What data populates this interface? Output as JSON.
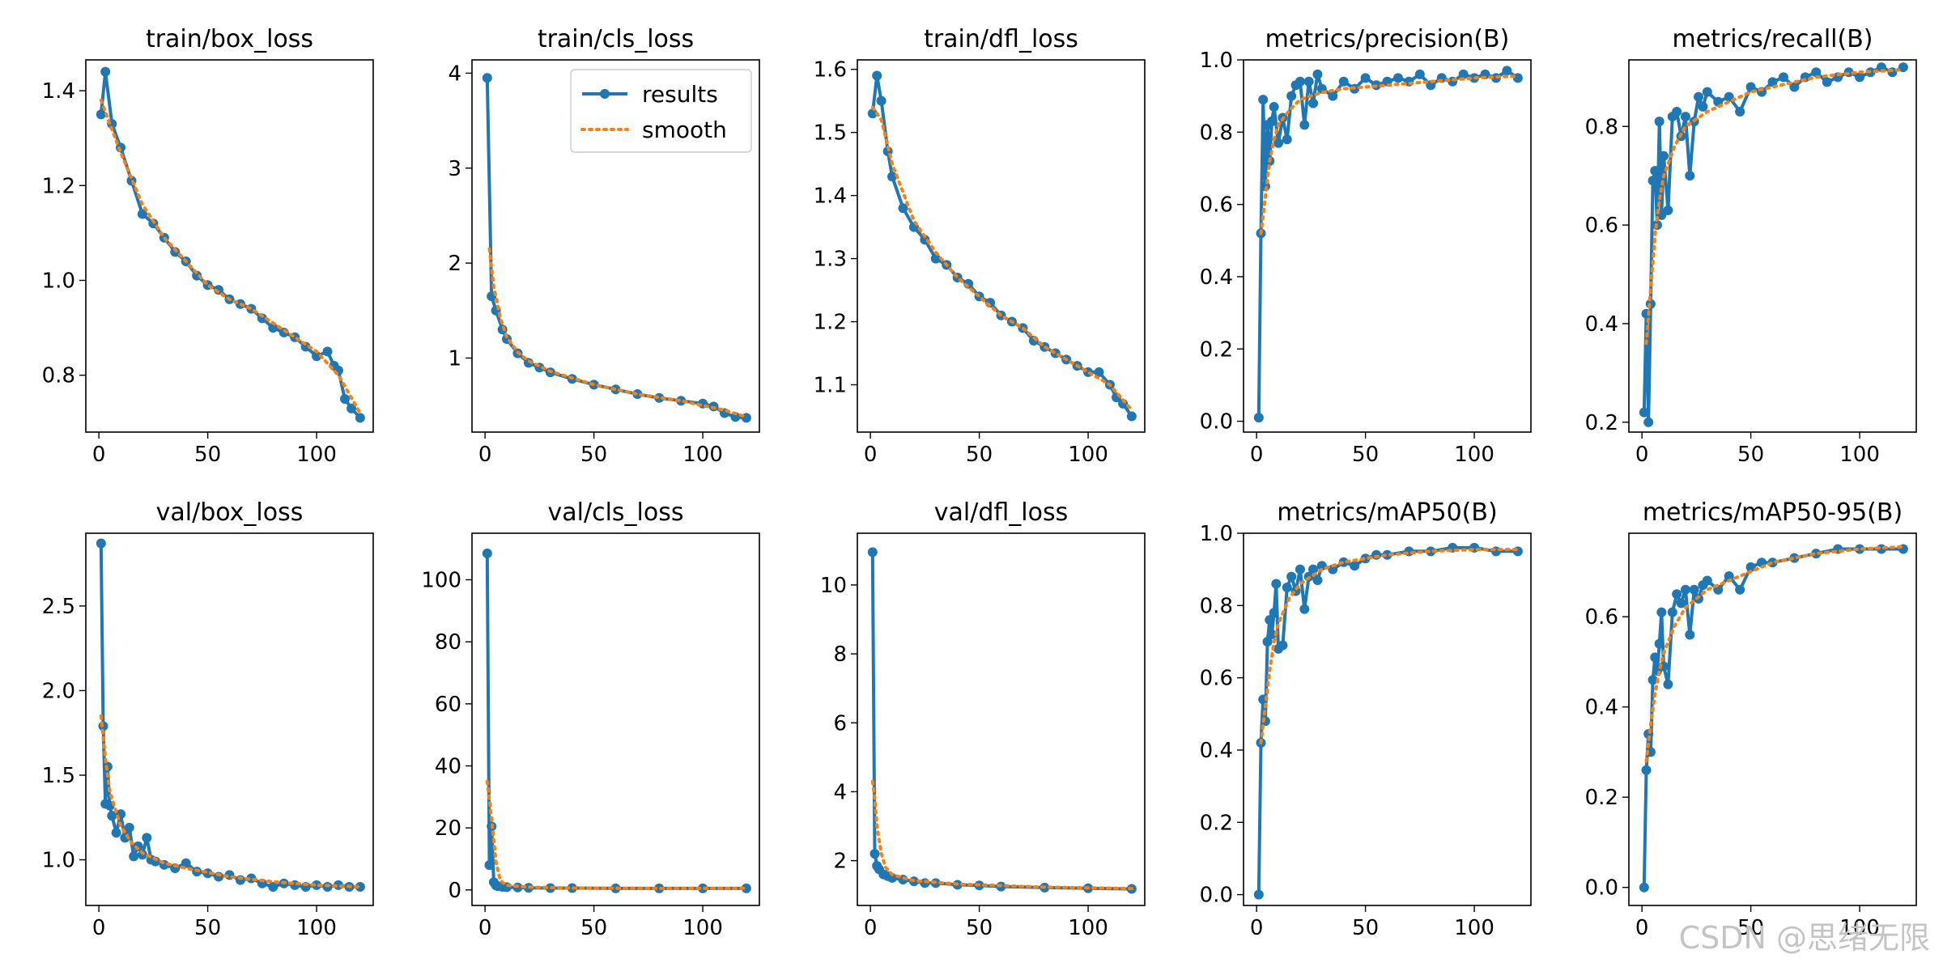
{
  "watermark": "CSDN @思绪无限",
  "colors": {
    "results": "#1f77b4",
    "smooth": "#ff7f0e"
  },
  "chart_data": [
    {
      "type": "line",
      "title": "train/box_loss",
      "xlim": [
        -6,
        126
      ],
      "ylim": [
        0.68,
        1.465
      ],
      "xticks": [
        "0",
        "50",
        "100"
      ],
      "yticks": [
        "0.8",
        "1.0",
        "1.2",
        "1.4"
      ],
      "series": [
        {
          "name": "results",
          "x": [
            1,
            3,
            6,
            10,
            15,
            20,
            25,
            30,
            35,
            40,
            45,
            50,
            55,
            60,
            65,
            70,
            75,
            80,
            85,
            90,
            95,
            100,
            105,
            108,
            110,
            113,
            116,
            120
          ],
          "values": [
            1.35,
            1.44,
            1.33,
            1.28,
            1.21,
            1.14,
            1.12,
            1.09,
            1.06,
            1.04,
            1.01,
            0.99,
            0.98,
            0.96,
            0.95,
            0.94,
            0.92,
            0.9,
            0.89,
            0.88,
            0.86,
            0.84,
            0.85,
            0.82,
            0.81,
            0.75,
            0.73,
            0.71
          ]
        },
        {
          "name": "smooth",
          "x": [
            1,
            5,
            10,
            20,
            30,
            40,
            50,
            60,
            70,
            80,
            90,
            100,
            110,
            120
          ],
          "values": [
            1.38,
            1.33,
            1.27,
            1.16,
            1.09,
            1.04,
            0.99,
            0.96,
            0.94,
            0.91,
            0.88,
            0.85,
            0.8,
            0.72
          ]
        }
      ]
    },
    {
      "type": "line",
      "title": "train/cls_loss",
      "xlim": [
        -6,
        126
      ],
      "ylim": [
        0.22,
        4.14
      ],
      "xticks": [
        "0",
        "50",
        "100"
      ],
      "yticks": [
        "1",
        "2",
        "3",
        "4"
      ],
      "legend": {
        "position": "top-right",
        "entries": [
          "results",
          "smooth"
        ]
      },
      "series": [
        {
          "name": "results",
          "x": [
            1,
            3,
            5,
            8,
            10,
            15,
            20,
            25,
            30,
            40,
            50,
            60,
            70,
            80,
            90,
            100,
            105,
            110,
            115,
            120
          ],
          "values": [
            3.95,
            1.65,
            1.5,
            1.3,
            1.2,
            1.05,
            0.95,
            0.9,
            0.85,
            0.78,
            0.72,
            0.67,
            0.62,
            0.58,
            0.55,
            0.52,
            0.49,
            0.42,
            0.38,
            0.37
          ]
        },
        {
          "name": "smooth",
          "x": [
            2,
            4,
            7,
            10,
            15,
            20,
            30,
            50,
            70,
            90,
            110,
            120
          ],
          "values": [
            2.15,
            1.75,
            1.42,
            1.22,
            1.06,
            0.97,
            0.86,
            0.72,
            0.62,
            0.55,
            0.45,
            0.38
          ]
        }
      ]
    },
    {
      "type": "line",
      "title": "train/dfl_loss",
      "xlim": [
        -6,
        126
      ],
      "ylim": [
        1.025,
        1.615
      ],
      "xticks": [
        "0",
        "50",
        "100"
      ],
      "yticks": [
        "1.1",
        "1.2",
        "1.3",
        "1.4",
        "1.5",
        "1.6"
      ],
      "series": [
        {
          "name": "results",
          "x": [
            1,
            3,
            5,
            8,
            10,
            15,
            20,
            25,
            30,
            35,
            40,
            45,
            50,
            55,
            60,
            65,
            70,
            75,
            80,
            85,
            90,
            95,
            100,
            105,
            110,
            113,
            116,
            120
          ],
          "values": [
            1.53,
            1.59,
            1.55,
            1.47,
            1.43,
            1.38,
            1.35,
            1.33,
            1.3,
            1.29,
            1.27,
            1.26,
            1.24,
            1.23,
            1.21,
            1.2,
            1.19,
            1.17,
            1.16,
            1.15,
            1.14,
            1.13,
            1.12,
            1.12,
            1.1,
            1.08,
            1.07,
            1.05
          ]
        },
        {
          "name": "smooth",
          "x": [
            1,
            5,
            10,
            20,
            30,
            40,
            50,
            60,
            70,
            80,
            90,
            100,
            110,
            120
          ],
          "values": [
            1.54,
            1.52,
            1.45,
            1.36,
            1.31,
            1.27,
            1.24,
            1.21,
            1.19,
            1.16,
            1.14,
            1.12,
            1.1,
            1.06
          ]
        }
      ]
    },
    {
      "type": "line",
      "title": "metrics/precision(B)",
      "xlim": [
        -6,
        126
      ],
      "ylim": [
        -0.03,
        1.0
      ],
      "xticks": [
        "0",
        "50",
        "100"
      ],
      "yticks": [
        "0.0",
        "0.2",
        "0.4",
        "0.6",
        "0.8",
        "1.0"
      ],
      "series": [
        {
          "name": "results",
          "x": [
            1,
            2,
            3,
            4,
            5,
            6,
            7,
            8,
            10,
            12,
            14,
            16,
            18,
            20,
            22,
            24,
            26,
            28,
            30,
            35,
            40,
            45,
            50,
            55,
            60,
            65,
            70,
            75,
            80,
            85,
            90,
            95,
            100,
            105,
            110,
            115,
            120
          ],
          "values": [
            0.01,
            0.52,
            0.89,
            0.65,
            0.82,
            0.72,
            0.83,
            0.87,
            0.77,
            0.84,
            0.78,
            0.9,
            0.93,
            0.94,
            0.82,
            0.94,
            0.88,
            0.96,
            0.92,
            0.9,
            0.94,
            0.92,
            0.95,
            0.93,
            0.94,
            0.95,
            0.94,
            0.96,
            0.93,
            0.95,
            0.94,
            0.96,
            0.95,
            0.96,
            0.95,
            0.97,
            0.95
          ]
        },
        {
          "name": "smooth",
          "x": [
            2,
            4,
            6,
            8,
            10,
            15,
            20,
            30,
            40,
            60,
            80,
            100,
            120
          ],
          "values": [
            0.52,
            0.62,
            0.72,
            0.78,
            0.82,
            0.86,
            0.89,
            0.91,
            0.92,
            0.93,
            0.94,
            0.95,
            0.955
          ]
        }
      ]
    },
    {
      "type": "line",
      "title": "metrics/recall(B)",
      "xlim": [
        -6,
        126
      ],
      "ylim": [
        0.18,
        0.935
      ],
      "xticks": [
        "0",
        "50",
        "100"
      ],
      "yticks": [
        "0.2",
        "0.4",
        "0.6",
        "0.8"
      ],
      "series": [
        {
          "name": "results",
          "x": [
            1,
            2,
            3,
            4,
            5,
            6,
            7,
            8,
            9,
            10,
            12,
            14,
            16,
            18,
            20,
            22,
            24,
            26,
            28,
            30,
            35,
            40,
            45,
            50,
            55,
            60,
            65,
            70,
            75,
            80,
            85,
            90,
            95,
            100,
            105,
            110,
            115,
            120
          ],
          "values": [
            0.22,
            0.42,
            0.2,
            0.44,
            0.69,
            0.71,
            0.6,
            0.81,
            0.62,
            0.74,
            0.63,
            0.82,
            0.83,
            0.78,
            0.82,
            0.7,
            0.81,
            0.86,
            0.84,
            0.87,
            0.85,
            0.86,
            0.83,
            0.88,
            0.87,
            0.89,
            0.9,
            0.88,
            0.9,
            0.91,
            0.89,
            0.9,
            0.91,
            0.9,
            0.91,
            0.92,
            0.91,
            0.92
          ]
        },
        {
          "name": "smooth",
          "x": [
            2,
            4,
            6,
            8,
            10,
            15,
            20,
            30,
            40,
            50,
            60,
            80,
            100,
            120
          ],
          "values": [
            0.36,
            0.47,
            0.58,
            0.65,
            0.7,
            0.76,
            0.8,
            0.83,
            0.85,
            0.87,
            0.88,
            0.9,
            0.91,
            0.915
          ]
        }
      ]
    },
    {
      "type": "line",
      "title": "val/box_loss",
      "xlim": [
        -6,
        126
      ],
      "ylim": [
        0.73,
        2.93
      ],
      "xticks": [
        "0",
        "50",
        "100"
      ],
      "yticks": [
        "1.0",
        "1.5",
        "2.0",
        "2.5"
      ],
      "series": [
        {
          "name": "results",
          "x": [
            1,
            2,
            3,
            4,
            5,
            6,
            8,
            10,
            12,
            14,
            16,
            18,
            20,
            22,
            24,
            26,
            30,
            35,
            40,
            45,
            50,
            55,
            60,
            65,
            70,
            75,
            80,
            85,
            90,
            95,
            100,
            105,
            110,
            115,
            120
          ],
          "values": [
            2.87,
            1.79,
            1.33,
            1.55,
            1.32,
            1.26,
            1.16,
            1.27,
            1.13,
            1.19,
            1.02,
            1.08,
            1.03,
            1.13,
            1.0,
            0.99,
            0.97,
            0.95,
            0.98,
            0.93,
            0.92,
            0.9,
            0.91,
            0.88,
            0.89,
            0.86,
            0.84,
            0.86,
            0.85,
            0.84,
            0.85,
            0.84,
            0.85,
            0.84,
            0.84
          ]
        },
        {
          "name": "smooth",
          "x": [
            1,
            3,
            5,
            8,
            10,
            15,
            20,
            30,
            40,
            60,
            80,
            100,
            120
          ],
          "values": [
            1.85,
            1.6,
            1.4,
            1.28,
            1.2,
            1.1,
            1.04,
            0.98,
            0.95,
            0.9,
            0.87,
            0.85,
            0.84
          ]
        }
      ]
    },
    {
      "type": "line",
      "title": "val/cls_loss",
      "xlim": [
        -6,
        126
      ],
      "ylim": [
        -5,
        115
      ],
      "xticks": [
        "0",
        "50",
        "100"
      ],
      "yticks": [
        "0",
        "20",
        "40",
        "60",
        "80",
        "100"
      ],
      "series": [
        {
          "name": "results",
          "x": [
            1,
            2,
            3,
            4,
            5,
            6,
            8,
            10,
            15,
            20,
            30,
            40,
            60,
            80,
            100,
            120
          ],
          "values": [
            108.5,
            8,
            20.5,
            2.5,
            1.5,
            1.2,
            1.0,
            0.9,
            0.8,
            0.7,
            0.6,
            0.6,
            0.5,
            0.5,
            0.5,
            0.5
          ]
        },
        {
          "name": "smooth",
          "x": [
            1,
            3,
            5,
            7,
            10,
            20,
            40,
            80,
            120
          ],
          "values": [
            35,
            23,
            9,
            3,
            1.5,
            0.9,
            0.6,
            0.5,
            0.5
          ]
        }
      ]
    },
    {
      "type": "line",
      "title": "val/dfl_loss",
      "xlim": [
        -6,
        126
      ],
      "ylim": [
        0.7,
        11.5
      ],
      "xticks": [
        "0",
        "50",
        "100"
      ],
      "yticks": [
        "2",
        "4",
        "6",
        "8",
        "10"
      ],
      "series": [
        {
          "name": "results",
          "x": [
            1,
            2,
            3,
            4,
            6,
            8,
            10,
            15,
            20,
            25,
            30,
            40,
            50,
            60,
            80,
            100,
            120
          ],
          "values": [
            10.95,
            2.2,
            1.85,
            1.75,
            1.6,
            1.55,
            1.5,
            1.45,
            1.4,
            1.35,
            1.35,
            1.3,
            1.28,
            1.25,
            1.22,
            1.2,
            1.18
          ]
        },
        {
          "name": "smooth",
          "x": [
            1,
            2,
            3,
            5,
            7,
            10,
            15,
            20,
            40,
            80,
            120
          ],
          "values": [
            4.3,
            3.8,
            3.0,
            2.2,
            1.8,
            1.6,
            1.5,
            1.42,
            1.32,
            1.23,
            1.19
          ]
        }
      ]
    },
    {
      "type": "line",
      "title": "metrics/mAP50(B)",
      "xlim": [
        -6,
        126
      ],
      "ylim": [
        -0.03,
        1.0
      ],
      "xticks": [
        "0",
        "50",
        "100"
      ],
      "yticks": [
        "0.0",
        "0.2",
        "0.4",
        "0.6",
        "0.8",
        "1.0"
      ],
      "series": [
        {
          "name": "results",
          "x": [
            1,
            2,
            3,
            4,
            5,
            6,
            7,
            8,
            9,
            10,
            12,
            14,
            16,
            18,
            20,
            22,
            24,
            26,
            28,
            30,
            35,
            40,
            45,
            50,
            55,
            60,
            70,
            80,
            90,
            100,
            110,
            120
          ],
          "values": [
            0.0,
            0.42,
            0.54,
            0.48,
            0.7,
            0.76,
            0.72,
            0.78,
            0.86,
            0.68,
            0.69,
            0.85,
            0.88,
            0.84,
            0.9,
            0.79,
            0.88,
            0.9,
            0.87,
            0.91,
            0.9,
            0.92,
            0.91,
            0.93,
            0.94,
            0.94,
            0.95,
            0.95,
            0.96,
            0.96,
            0.95,
            0.95
          ]
        },
        {
          "name": "smooth",
          "x": [
            2,
            4,
            6,
            8,
            10,
            15,
            20,
            30,
            40,
            60,
            80,
            100,
            120
          ],
          "values": [
            0.42,
            0.52,
            0.62,
            0.7,
            0.75,
            0.82,
            0.86,
            0.9,
            0.92,
            0.94,
            0.95,
            0.955,
            0.955
          ]
        }
      ]
    },
    {
      "type": "line",
      "title": "metrics/mAP50-95(B)",
      "xlim": [
        -6,
        126
      ],
      "ylim": [
        -0.04,
        0.785
      ],
      "xticks": [
        "0",
        "50",
        "100"
      ],
      "yticks": [
        "0.0",
        "0.2",
        "0.4",
        "0.6"
      ],
      "series": [
        {
          "name": "results",
          "x": [
            1,
            2,
            3,
            4,
            5,
            6,
            7,
            8,
            9,
            10,
            12,
            14,
            16,
            18,
            20,
            22,
            24,
            26,
            28,
            30,
            35,
            40,
            45,
            50,
            55,
            60,
            70,
            80,
            90,
            100,
            110,
            120
          ],
          "values": [
            0.0,
            0.26,
            0.34,
            0.3,
            0.46,
            0.51,
            0.48,
            0.54,
            0.61,
            0.49,
            0.45,
            0.61,
            0.65,
            0.63,
            0.66,
            0.56,
            0.66,
            0.64,
            0.67,
            0.68,
            0.66,
            0.69,
            0.66,
            0.71,
            0.72,
            0.72,
            0.73,
            0.74,
            0.75,
            0.75,
            0.75,
            0.75
          ]
        },
        {
          "name": "smooth",
          "x": [
            2,
            4,
            6,
            8,
            10,
            15,
            20,
            30,
            40,
            60,
            80,
            100,
            120
          ],
          "values": [
            0.28,
            0.36,
            0.43,
            0.48,
            0.52,
            0.58,
            0.62,
            0.66,
            0.68,
            0.72,
            0.74,
            0.75,
            0.755
          ]
        }
      ]
    }
  ]
}
